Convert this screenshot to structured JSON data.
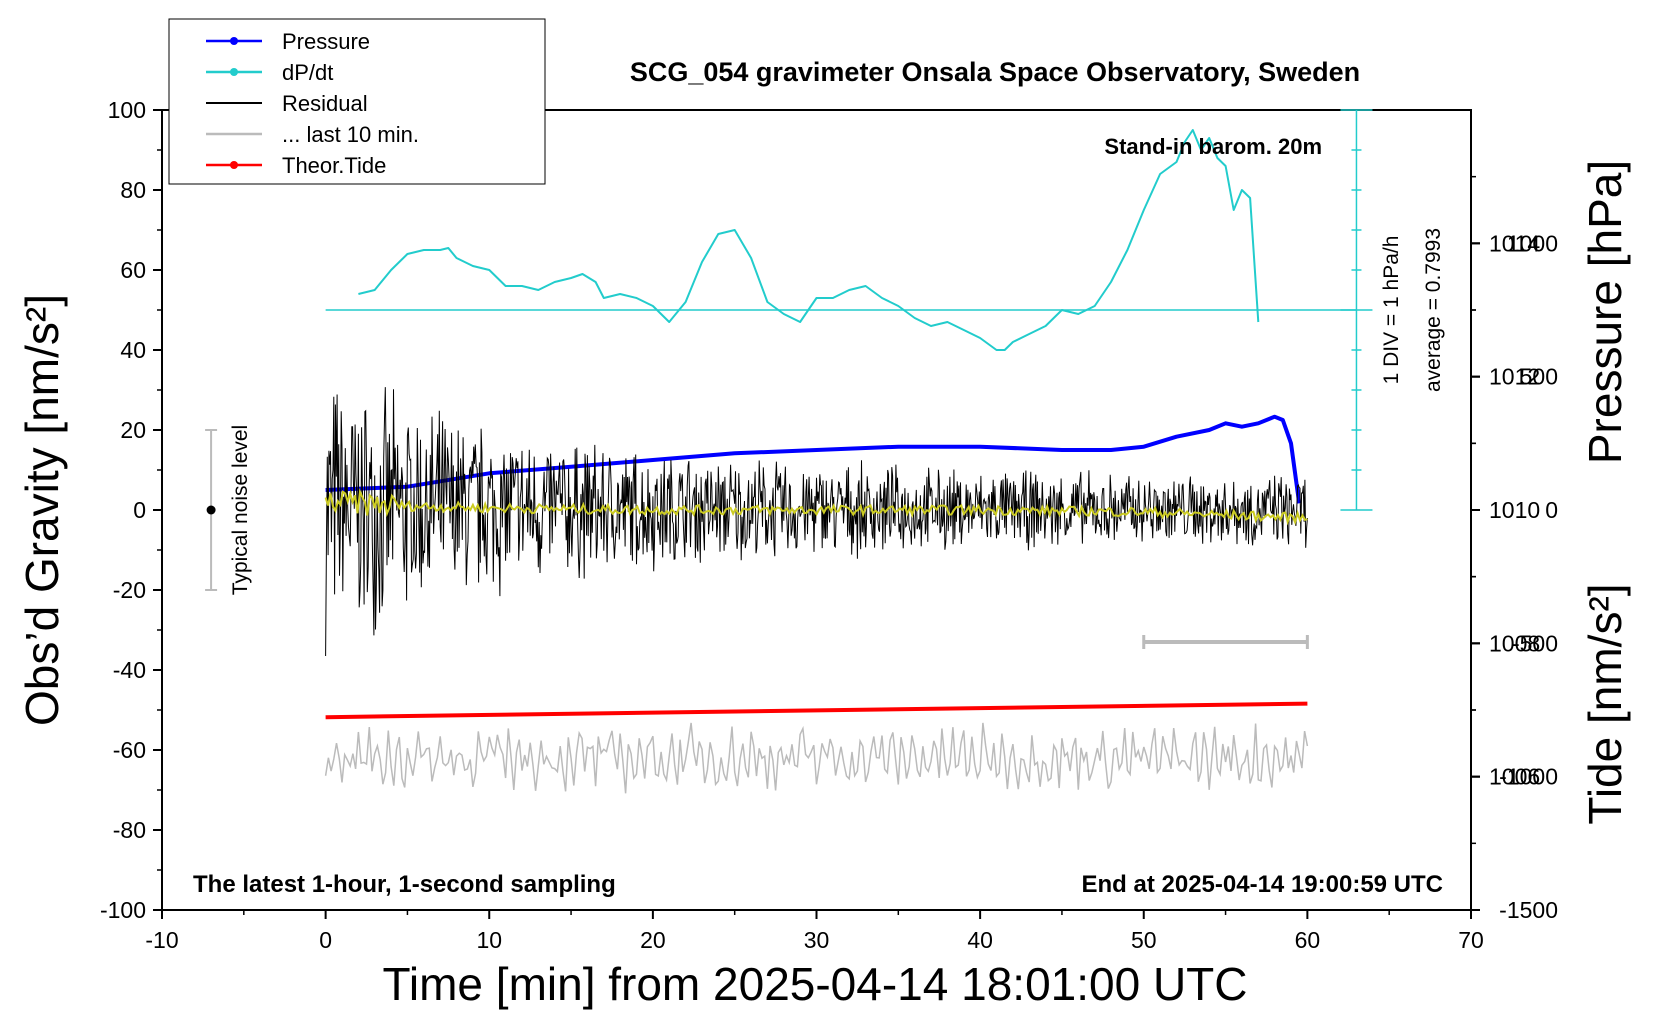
{
  "chart_data": {
    "type": "line",
    "title": "SCG_054 gravimeter Onsala Space Observatory, Sweden",
    "xlabel": "Time [min] from 2025-04-14 18:01:00 UTC",
    "ylabel_left": "Obs’d Gravity [nm/s²]",
    "ylabel_right_top": "Pressure [hPa]",
    "ylabel_right_bottom": "Tide [nm/s²]",
    "xlim": [
      -10,
      70
    ],
    "ylim": [
      -100,
      100
    ],
    "x_ticks": [
      "-10",
      "0",
      "10",
      "20",
      "30",
      "40",
      "50",
      "60",
      "70"
    ],
    "y_ticks": [
      "-100",
      "-80",
      "-60",
      "-40",
      "-20",
      "0",
      "20",
      "40",
      "60",
      "80",
      "100"
    ],
    "pressure_axis": {
      "range": [
        1004,
        1016
      ],
      "ticks": [
        "1006",
        "1008",
        "1010",
        "1012",
        "1014"
      ]
    },
    "tide_axis": {
      "range": [
        -1500,
        1500
      ],
      "ticks": [
        "-1500",
        "-1000",
        "-500",
        "0",
        "500",
        "1000"
      ]
    },
    "legend": {
      "position": "top-left",
      "entries": [
        {
          "label": "Pressure",
          "color": "#0000ff",
          "marker": true
        },
        {
          "label": "dP/dt",
          "color": "#22cccc",
          "marker": true
        },
        {
          "label": "Residual",
          "color": "#000000",
          "marker": false
        },
        {
          "label": "... last 10 min.",
          "color": "#bbbbbb",
          "marker": false
        },
        {
          "label": "Theor.Tide",
          "color": "#ff0000",
          "marker": true
        }
      ]
    },
    "annotations": {
      "barometer": "Stand-in barom. 20m",
      "scale_div": "1 DIV = 1 hPa/h",
      "average": "average = 0.7993",
      "noise": "Typical noise level",
      "bottom_left": "The latest 1-hour, 1-second sampling",
      "bottom_right": "End at 2025-04-14 19:00:59 UTC"
    },
    "noise_bar": {
      "x": -7,
      "y_low": -20,
      "y_high": 20,
      "center": 0
    },
    "last10_bar": {
      "x_start": 50,
      "x_end": 60,
      "y": -33
    },
    "series": [
      {
        "name": "Pressure",
        "color": "#0000ff",
        "units": "hPa",
        "x": [
          0,
          5,
          10,
          15,
          20,
          25,
          30,
          35,
          40,
          45,
          48,
          50,
          52,
          54,
          55,
          56,
          57,
          58,
          58.5,
          59,
          59.5
        ],
        "y": [
          1010.3,
          1010.35,
          1010.55,
          1010.65,
          1010.75,
          1010.85,
          1010.9,
          1010.95,
          1010.95,
          1010.9,
          1010.9,
          1010.95,
          1011.1,
          1011.2,
          1011.3,
          1011.25,
          1011.3,
          1011.4,
          1011.35,
          1011.0,
          1010.1
        ]
      },
      {
        "name": "dP/dt",
        "color": "#22cccc",
        "baseline": 50,
        "x": [
          2,
          3,
          4,
          5,
          6,
          7,
          7.5,
          8,
          9,
          10,
          11,
          12,
          13,
          14,
          15,
          15.7,
          16.5,
          17,
          18,
          19,
          20,
          21,
          22,
          23,
          24,
          25,
          26,
          27,
          28,
          29,
          30,
          31,
          32,
          33,
          34,
          35,
          36,
          37,
          38,
          39,
          40,
          41,
          41.5,
          42,
          43,
          44,
          45,
          46,
          47,
          48,
          49,
          50,
          51,
          52,
          52.5,
          53,
          53.5,
          54,
          54.5,
          55,
          55.5,
          56,
          56.5,
          57
        ],
        "y": [
          54,
          55,
          60,
          64,
          65,
          65,
          65.5,
          63,
          61,
          60,
          56,
          56,
          55,
          57,
          58,
          59,
          57,
          53,
          54,
          53,
          51,
          47,
          52,
          62,
          69,
          70,
          63,
          52,
          49,
          47,
          53,
          53,
          55,
          56,
          53,
          51,
          48,
          46,
          47,
          45,
          43,
          40,
          40,
          42,
          44,
          46,
          50,
          49,
          51,
          57,
          65,
          75,
          84,
          87,
          92,
          95,
          90,
          93,
          88,
          86,
          75,
          80,
          78,
          47
        ]
      },
      {
        "name": "Residual",
        "color": "#000000",
        "x_range": [
          0,
          60
        ],
        "envelope": {
          "start": 28,
          "end": 10
        },
        "mean": 0
      },
      {
        "name": "Residual (smoothed)",
        "color": "#cccc22",
        "x": [
          0,
          5,
          10,
          20,
          30,
          40,
          50,
          60
        ],
        "y": [
          2,
          1,
          0.5,
          0,
          0,
          0,
          -0.5,
          -2
        ]
      },
      {
        "name": "... last 10 min.",
        "color": "#bbbbbb",
        "x_range": [
          0,
          60
        ],
        "mean": -62
      },
      {
        "name": "Theor.Tide",
        "color": "#ff0000",
        "x": [
          0,
          60
        ],
        "y_gravity": [
          -51.8,
          -48.4
        ]
      }
    ]
  }
}
